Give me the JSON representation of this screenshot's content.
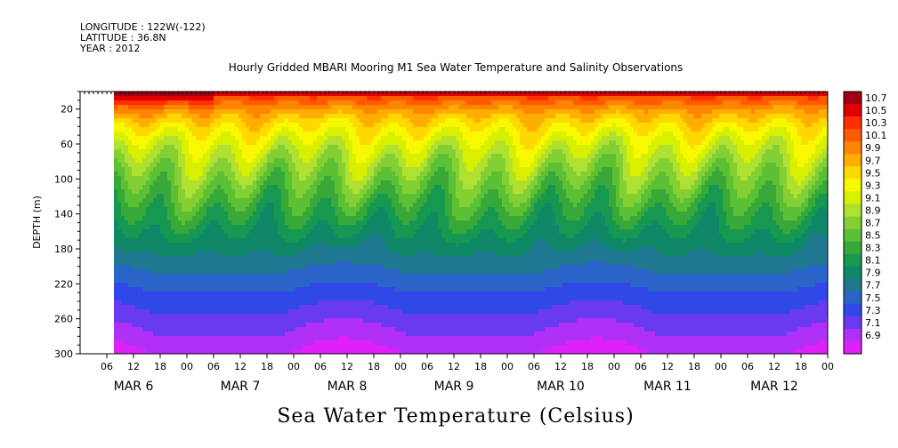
{
  "header": {
    "longitude": "LONGITUDE : 122W(-122)",
    "latitude": "LATITUDE : 36.8N",
    "year": "YEAR : 2012"
  },
  "chart_data": {
    "type": "heatmap",
    "title": "Hourly Gridded MBARI Mooring M1 Sea Water Temperature and Salinity Observations",
    "bottom_title": "Sea Water Temperature (Celsius)",
    "ylabel": "DEPTH (m)",
    "y_axis": {
      "reversed": true,
      "range": [
        0,
        300
      ],
      "ticks": [
        20,
        60,
        100,
        140,
        180,
        220,
        260,
        300
      ]
    },
    "x_axis": {
      "range_hours": [
        0,
        168
      ],
      "hour_ticks": [
        "06",
        "12",
        "18",
        "00",
        "06",
        "12",
        "18",
        "00",
        "06",
        "12",
        "18",
        "00",
        "06",
        "12",
        "18",
        "00",
        "06",
        "12",
        "18",
        "00",
        "06",
        "12",
        "18",
        "00",
        "06",
        "12",
        "18",
        "00"
      ],
      "day_labels": [
        "MAR  6",
        "MAR  7",
        "MAR  8",
        "MAR  9",
        "MAR 10",
        "MAR 11",
        "MAR 12"
      ]
    },
    "data_start": "MAR 6 09:00",
    "colorbar": {
      "levels": [
        "10.7",
        "10.5",
        "10.3",
        "10.1",
        "9.9",
        "9.7",
        "9.5",
        "9.3",
        "9.1",
        "8.9",
        "8.7",
        "8.5",
        "8.3",
        "8.1",
        "7.9",
        "7.7",
        "7.5",
        "7.3",
        "7.1",
        "6.9"
      ],
      "colors": [
        "#a00014",
        "#e00000",
        "#ff3000",
        "#ff5a00",
        "#ff8400",
        "#ffae00",
        "#ffd800",
        "#f8f800",
        "#d8f000",
        "#b0e030",
        "#84d034",
        "#5cc034",
        "#38a838",
        "#169850",
        "#0f8868",
        "#1e7890",
        "#2a64c8",
        "#3048e8",
        "#6a3af0",
        "#b030f8",
        "#e020f8"
      ]
    },
    "depth_profile_summary": {
      "surface_range": [
        9.5,
        10.7
      ],
      "bottom_range": [
        6.9,
        7.5
      ],
      "note": ""
    }
  }
}
